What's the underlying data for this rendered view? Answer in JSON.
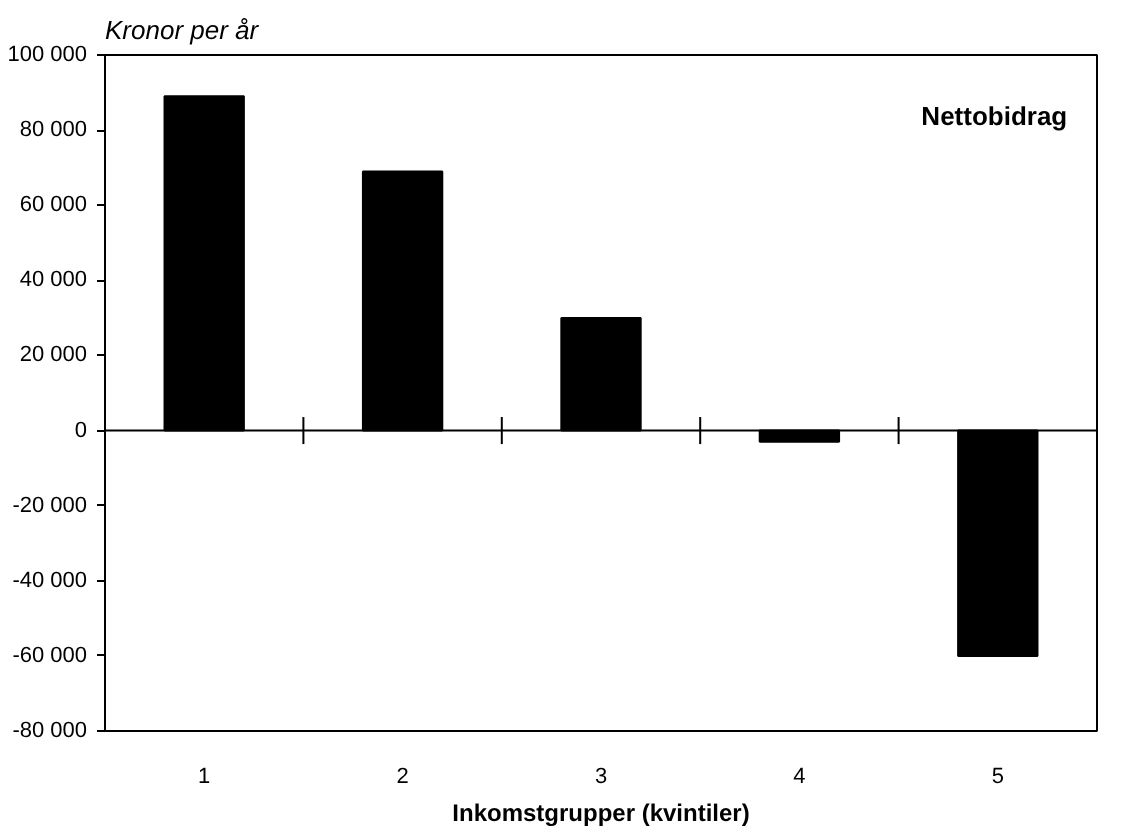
{
  "chart_data": {
    "type": "bar",
    "ylabel": "Kronor per år",
    "xlabel": "Inkomstgrupper (kvintiler)",
    "categories": [
      "1",
      "2",
      "3",
      "4",
      "5"
    ],
    "series": [
      {
        "name": "Nettobidrag",
        "color": "#000000",
        "values": [
          89000,
          69000,
          30000,
          -3000,
          -60000
        ]
      }
    ],
    "ylim": [
      -80000,
      100000
    ],
    "yticks": [
      {
        "value": -80000,
        "label": "-80 000"
      },
      {
        "value": -60000,
        "label": "-60 000"
      },
      {
        "value": -40000,
        "label": "-40 000"
      },
      {
        "value": -20000,
        "label": "-20 000"
      },
      0,
      {
        "value": 20000,
        "label": "20 000"
      },
      {
        "value": 40000,
        "label": "40 000"
      },
      {
        "value": 60000,
        "label": "60 000"
      },
      {
        "value": 80000,
        "label": "80 000"
      },
      {
        "value": 100000,
        "label": "100 000"
      }
    ],
    "legend": "top right"
  }
}
